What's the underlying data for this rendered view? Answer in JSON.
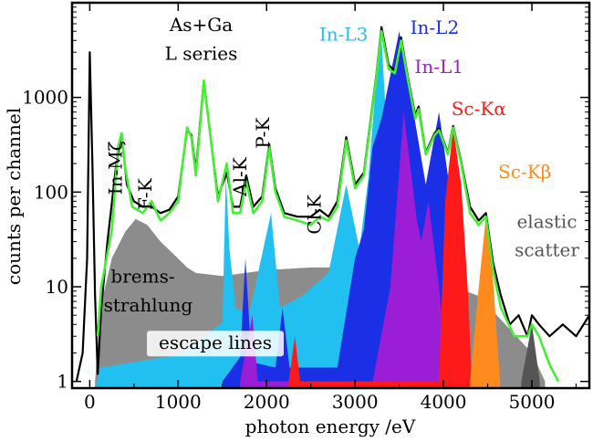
{
  "chart_data": {
    "type": "area",
    "xlabel": "photon energy /eV",
    "ylabel": "counts per channel",
    "y_scale": "log",
    "xlim": [
      -200,
      5650
    ],
    "ylim": [
      0.85,
      10000
    ],
    "grid": false,
    "x_ticks": [
      {
        "value": 0,
        "label": "0"
      },
      {
        "value": 1000,
        "label": "1000"
      },
      {
        "value": 2000,
        "label": "2000"
      },
      {
        "value": 3000,
        "label": "3000"
      },
      {
        "value": 4000,
        "label": "4000"
      },
      {
        "value": 5000,
        "label": "5000"
      }
    ],
    "y_ticks": [
      {
        "value": 1,
        "label": "1"
      },
      {
        "value": 10,
        "label": "10"
      },
      {
        "value": 100,
        "label": "100"
      },
      {
        "value": 1000,
        "label": "1000"
      }
    ],
    "components": [
      {
        "name": "brems-strahlung",
        "color": "#8c8c8c",
        "points": [
          [
            60,
            1
          ],
          [
            120,
            6
          ],
          [
            250,
            20
          ],
          [
            400,
            38
          ],
          [
            520,
            52
          ],
          [
            650,
            45
          ],
          [
            800,
            30
          ],
          [
            950,
            22
          ],
          [
            1100,
            16
          ],
          [
            1200,
            14
          ],
          [
            1500,
            13
          ],
          [
            2000,
            15
          ],
          [
            2500,
            16
          ],
          [
            3000,
            16
          ],
          [
            3500,
            14
          ],
          [
            4000,
            11
          ],
          [
            4400,
            8
          ],
          [
            4700,
            4
          ],
          [
            5000,
            2
          ],
          [
            5150,
            1
          ]
        ]
      },
      {
        "name": "In-L3",
        "color": "#22c0f0",
        "points": [
          [
            80,
            1
          ],
          [
            120,
            1.4
          ],
          [
            500,
            1.6
          ],
          [
            1000,
            1.9
          ],
          [
            1200,
            2.6
          ],
          [
            1500,
            4.2
          ],
          [
            1540,
            150
          ],
          [
            1580,
            25
          ],
          [
            1650,
            6
          ],
          [
            1800,
            5
          ],
          [
            2050,
            60
          ],
          [
            2150,
            6
          ],
          [
            2400,
            8
          ],
          [
            2700,
            14
          ],
          [
            2900,
            120
          ],
          [
            3050,
            25
          ],
          [
            3150,
            140
          ],
          [
            3290,
            6000
          ],
          [
            3400,
            90
          ],
          [
            3600,
            60
          ],
          [
            3700,
            300
          ],
          [
            3800,
            40
          ],
          [
            4000,
            12
          ],
          [
            4100,
            6
          ],
          [
            4250,
            1
          ]
        ]
      },
      {
        "name": "In-L2",
        "color": "#1a2fe6",
        "points": [
          [
            1500,
            1
          ],
          [
            1700,
            1.8
          ],
          [
            1760,
            20
          ],
          [
            1830,
            1.6
          ],
          [
            2100,
            1.4
          ],
          [
            2180,
            6
          ],
          [
            2260,
            1.4
          ],
          [
            2800,
            1.4
          ],
          [
            3000,
            20
          ],
          [
            3100,
            40
          ],
          [
            3200,
            300
          ],
          [
            3300,
            600
          ],
          [
            3500,
            5000
          ],
          [
            3650,
            800
          ],
          [
            3800,
            120
          ],
          [
            3950,
            700
          ],
          [
            4050,
            150
          ],
          [
            4150,
            10
          ],
          [
            4250,
            1
          ]
        ]
      },
      {
        "name": "In-L1",
        "color": "#9b1ed6",
        "points": [
          [
            1700,
            1
          ],
          [
            1840,
            5
          ],
          [
            1900,
            1
          ],
          [
            3200,
            1
          ],
          [
            3400,
            10
          ],
          [
            3550,
            700
          ],
          [
            3700,
            50
          ],
          [
            3750,
            30
          ],
          [
            3830,
            80
          ],
          [
            3950,
            10
          ],
          [
            4050,
            1
          ]
        ]
      },
      {
        "name": "Sc-Kα",
        "color": "#ff1a1a",
        "points": [
          [
            2250,
            1
          ],
          [
            2320,
            3
          ],
          [
            2380,
            1
          ],
          [
            3950,
            1
          ],
          [
            4020,
            80
          ],
          [
            4110,
            480
          ],
          [
            4200,
            120
          ],
          [
            4280,
            8
          ],
          [
            4320,
            1
          ]
        ]
      },
      {
        "name": "Sc-Kβ",
        "color": "#ff8a1e",
        "points": [
          [
            4300,
            1
          ],
          [
            4400,
            10
          ],
          [
            4480,
            55
          ],
          [
            4560,
            12
          ],
          [
            4640,
            1
          ]
        ]
      },
      {
        "name": "elastic scatter",
        "color": "#555555",
        "points": [
          [
            4880,
            1
          ],
          [
            5000,
            4
          ],
          [
            5090,
            1
          ]
        ]
      }
    ],
    "fit_line": {
      "name": "fit",
      "color": "#44ee33",
      "points": [
        [
          90,
          3
        ],
        [
          130,
          10
        ],
        [
          250,
          40
        ],
        [
          320,
          300
        ],
        [
          360,
          420
        ],
        [
          400,
          180
        ],
        [
          480,
          70
        ],
        [
          600,
          60
        ],
        [
          700,
          80
        ],
        [
          800,
          50
        ],
        [
          900,
          60
        ],
        [
          1000,
          80
        ],
        [
          1050,
          200
        ],
        [
          1100,
          480
        ],
        [
          1150,
          380
        ],
        [
          1200,
          150
        ],
        [
          1290,
          1500
        ],
        [
          1380,
          300
        ],
        [
          1450,
          80
        ],
        [
          1550,
          200
        ],
        [
          1620,
          60
        ],
        [
          1700,
          60
        ],
        [
          1770,
          130
        ],
        [
          1850,
          60
        ],
        [
          1950,
          80
        ],
        [
          2030,
          300
        ],
        [
          2100,
          100
        ],
        [
          2200,
          55
        ],
        [
          2350,
          50
        ],
        [
          2500,
          45
        ],
        [
          2600,
          55
        ],
        [
          2700,
          50
        ],
        [
          2800,
          70
        ],
        [
          2900,
          350
        ],
        [
          3000,
          110
        ],
        [
          3100,
          150
        ],
        [
          3240,
          1600
        ],
        [
          3300,
          5000
        ],
        [
          3380,
          2000
        ],
        [
          3450,
          1800
        ],
        [
          3520,
          4000
        ],
        [
          3600,
          1500
        ],
        [
          3680,
          600
        ],
        [
          3720,
          750
        ],
        [
          3800,
          250
        ],
        [
          3900,
          400
        ],
        [
          3950,
          450
        ],
        [
          4050,
          250
        ],
        [
          4110,
          480
        ],
        [
          4200,
          200
        ],
        [
          4300,
          60
        ],
        [
          4400,
          45
        ],
        [
          4480,
          55
        ],
        [
          4560,
          15
        ],
        [
          4650,
          6
        ],
        [
          4800,
          3
        ],
        [
          4950,
          3
        ],
        [
          5000,
          4
        ],
        [
          5080,
          3
        ],
        [
          5200,
          1.5
        ],
        [
          5300,
          1
        ]
      ]
    },
    "data_line": {
      "name": "measured",
      "color": "#000000",
      "points": [
        [
          -150,
          1
        ],
        [
          -80,
          2
        ],
        [
          -30,
          20
        ],
        [
          0,
          3000
        ],
        [
          30,
          200
        ],
        [
          60,
          8
        ],
        [
          90,
          1.2
        ],
        [
          130,
          6
        ],
        [
          200,
          30
        ],
        [
          300,
          200
        ],
        [
          360,
          400
        ],
        [
          420,
          120
        ],
        [
          500,
          80
        ],
        [
          600,
          70
        ],
        [
          700,
          70
        ],
        [
          800,
          60
        ],
        [
          900,
          65
        ],
        [
          1000,
          90
        ],
        [
          1100,
          450
        ],
        [
          1150,
          400
        ],
        [
          1200,
          170
        ],
        [
          1290,
          1500
        ],
        [
          1380,
          300
        ],
        [
          1450,
          90
        ],
        [
          1550,
          160
        ],
        [
          1620,
          70
        ],
        [
          1700,
          70
        ],
        [
          1770,
          150
        ],
        [
          1850,
          70
        ],
        [
          1950,
          90
        ],
        [
          2030,
          320
        ],
        [
          2100,
          110
        ],
        [
          2200,
          60
        ],
        [
          2350,
          55
        ],
        [
          2500,
          55
        ],
        [
          2600,
          65
        ],
        [
          2700,
          55
        ],
        [
          2800,
          80
        ],
        [
          2900,
          380
        ],
        [
          3000,
          120
        ],
        [
          3100,
          160
        ],
        [
          3240,
          1700
        ],
        [
          3300,
          5500
        ],
        [
          3380,
          2200
        ],
        [
          3450,
          1900
        ],
        [
          3520,
          4300
        ],
        [
          3600,
          1600
        ],
        [
          3680,
          650
        ],
        [
          3720,
          800
        ],
        [
          3800,
          260
        ],
        [
          3900,
          420
        ],
        [
          3950,
          470
        ],
        [
          4050,
          260
        ],
        [
          4110,
          500
        ],
        [
          4200,
          210
        ],
        [
          4300,
          70
        ],
        [
          4400,
          50
        ],
        [
          4480,
          60
        ],
        [
          4560,
          18
        ],
        [
          4650,
          8
        ],
        [
          4750,
          4
        ],
        [
          4850,
          5
        ],
        [
          4950,
          3
        ],
        [
          5000,
          5
        ],
        [
          5080,
          4
        ],
        [
          5200,
          3
        ],
        [
          5350,
          4
        ],
        [
          5500,
          3
        ],
        [
          5650,
          5
        ]
      ]
    },
    "annotations": [
      {
        "id": "in-mz",
        "text": "In-Mζ",
        "color": "#000000",
        "x": 360,
        "y": 180,
        "rotate": true
      },
      {
        "id": "f-k",
        "text": "F-K",
        "color": "#000000",
        "x": 700,
        "y": 95,
        "rotate": true
      },
      {
        "id": "as-ga-1",
        "text": "As+Ga",
        "color": "#000000",
        "x": 1260,
        "y": 5000,
        "rotate": false
      },
      {
        "id": "as-ga-2",
        "text": "L series",
        "color": "#000000",
        "x": 1260,
        "y": 2500,
        "rotate": false
      },
      {
        "id": "al-k",
        "text": "Al-K",
        "color": "#000000",
        "x": 1770,
        "y": 145,
        "rotate": true
      },
      {
        "id": "p-k",
        "text": "P-K",
        "color": "#000000",
        "x": 2030,
        "y": 420,
        "rotate": true
      },
      {
        "id": "cl-k",
        "text": "Cl-K",
        "color": "#000000",
        "x": 2610,
        "y": 58,
        "rotate": true
      },
      {
        "id": "in-l3",
        "text": "In-L3",
        "color": "#22c0f0",
        "x": 2870,
        "y": 4000,
        "rotate": false
      },
      {
        "id": "in-l2",
        "text": "In-L2",
        "color": "#1a2fe6",
        "x": 3900,
        "y": 4700,
        "rotate": false
      },
      {
        "id": "in-l1",
        "text": "In-L1",
        "color": "#9b1ed6",
        "x": 3950,
        "y": 1800,
        "rotate": false
      },
      {
        "id": "sc-ka",
        "text": "Sc-Kα",
        "color": "#ff1a1a",
        "x": 4400,
        "y": 650,
        "rotate": false
      },
      {
        "id": "sc-kb",
        "text": "Sc-Kβ",
        "color": "#ff8a1e",
        "x": 4920,
        "y": 140,
        "rotate": false
      },
      {
        "id": "elastic-1",
        "text": "elastic",
        "color": "#555555",
        "x": 5170,
        "y": 42,
        "rotate": false
      },
      {
        "id": "elastic-2",
        "text": "scatter",
        "color": "#555555",
        "x": 5170,
        "y": 21,
        "rotate": false
      },
      {
        "id": "brems-1",
        "text": "brems-",
        "color": "#000000",
        "x": 600,
        "y": 11,
        "rotate": false
      },
      {
        "id": "brems-2",
        "text": "strahlung",
        "color": "#000000",
        "x": 660,
        "y": 5.5,
        "rotate": false
      },
      {
        "id": "escape",
        "text": "escape lines",
        "color": "#000000",
        "x": 1420,
        "y": 2.2,
        "rotate": false,
        "box": true
      }
    ]
  }
}
